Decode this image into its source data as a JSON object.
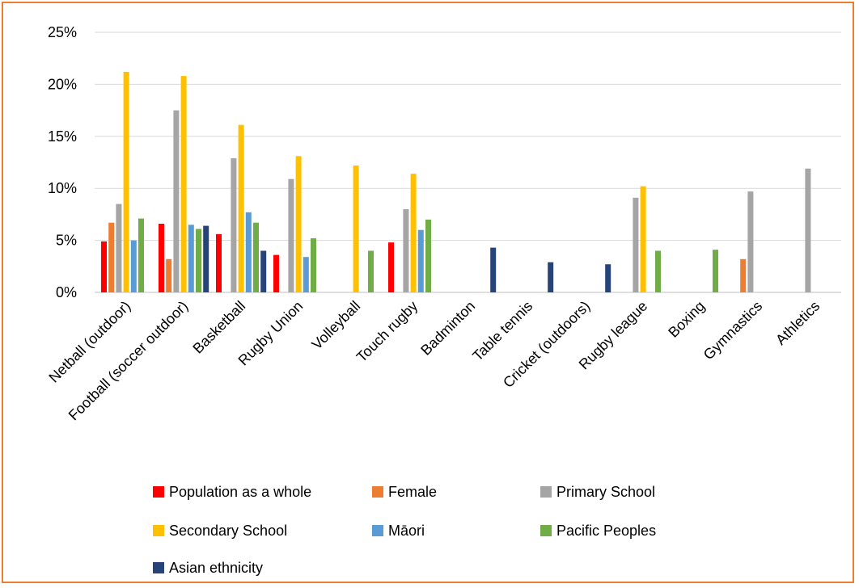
{
  "chart_data": {
    "type": "bar",
    "title": "",
    "xlabel": "",
    "ylabel": "",
    "ylim": [
      0,
      25
    ],
    "yticks": [
      0,
      5,
      10,
      15,
      20,
      25
    ],
    "ytick_labels": [
      "0%",
      "5%",
      "10%",
      "15%",
      "20%",
      "25%"
    ],
    "grid": true,
    "legend_position": "bottom",
    "categories": [
      "Netball (outdoor)",
      "Football (soccer outdoor)",
      "Basketball",
      "Rugby Union",
      "Volleyball",
      "Touch rugby",
      "Badminton",
      "Table tennis",
      "Cricket (outdoors)",
      "Rugby league",
      "Boxing",
      "Gymnastics",
      "Athletics"
    ],
    "series": [
      {
        "name": "Population as a whole",
        "color": "#ff0000",
        "values": [
          4.9,
          6.6,
          5.6,
          3.6,
          null,
          4.8,
          null,
          null,
          null,
          null,
          null,
          null,
          null
        ]
      },
      {
        "name": "Female",
        "color": "#ed7d31",
        "values": [
          6.7,
          3.2,
          null,
          null,
          null,
          null,
          null,
          null,
          null,
          null,
          null,
          3.2,
          null
        ]
      },
      {
        "name": "Primary School",
        "color": "#a5a5a5",
        "values": [
          8.5,
          17.5,
          12.9,
          10.9,
          null,
          8.0,
          null,
          null,
          null,
          9.1,
          null,
          9.7,
          11.9
        ]
      },
      {
        "name": "Secondary School",
        "color": "#ffc000",
        "values": [
          21.2,
          20.8,
          16.1,
          13.1,
          12.2,
          11.4,
          null,
          null,
          null,
          10.2,
          null,
          null,
          null
        ]
      },
      {
        "name": "Māori",
        "color": "#5b9bd5",
        "values": [
          5.0,
          6.5,
          7.7,
          3.4,
          null,
          6.0,
          null,
          null,
          null,
          null,
          null,
          null,
          null
        ]
      },
      {
        "name": "Pacific Peoples",
        "color": "#70ad47",
        "values": [
          7.1,
          6.1,
          6.7,
          5.2,
          4.0,
          7.0,
          null,
          null,
          null,
          4.0,
          4.1,
          null,
          null
        ]
      },
      {
        "name": "Asian ethnicity",
        "color": "#264478",
        "values": [
          null,
          6.4,
          4.0,
          null,
          null,
          null,
          4.3,
          2.9,
          2.7,
          null,
          null,
          null,
          null
        ]
      }
    ]
  },
  "colors": {
    "border": "#ed7d31",
    "grid": "#d9d9d9"
  }
}
